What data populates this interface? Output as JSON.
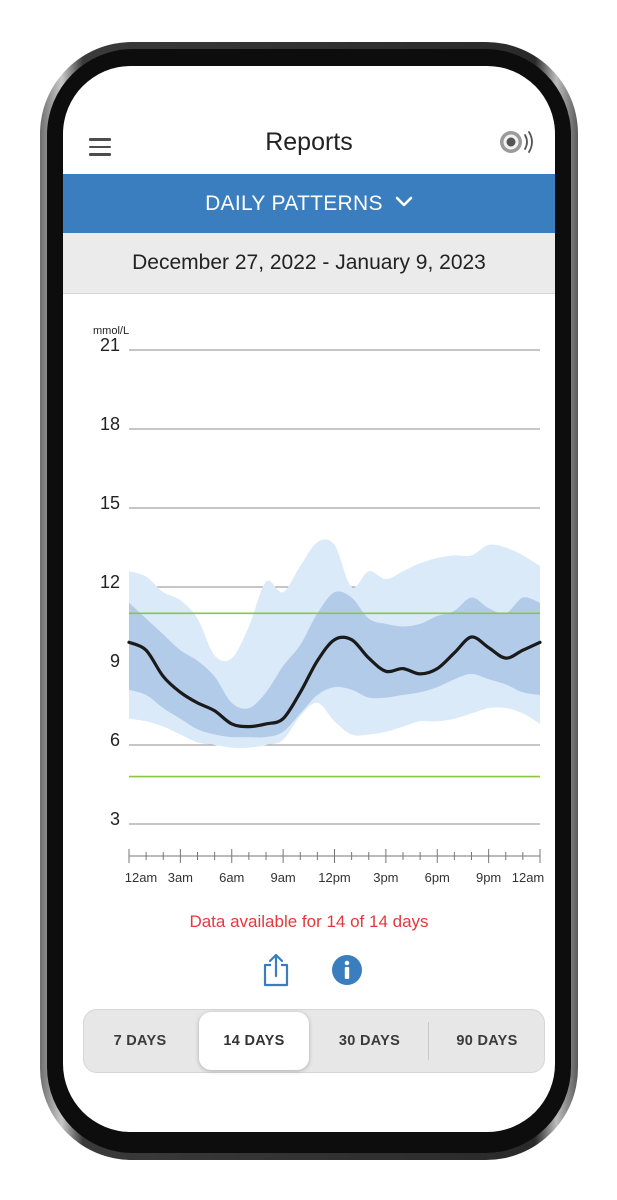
{
  "header": {
    "title": "Reports",
    "menu_icon": "hamburger-menu-icon",
    "sensor_icon": "sensor-signal-icon"
  },
  "report_selector": {
    "label": "DAILY PATTERNS",
    "icon": "chevron-down-icon"
  },
  "date_range": "December 27, 2022 - January 9, 2023",
  "chart_data": {
    "type": "area",
    "unit_label": "mmol/L",
    "ylim": [
      3,
      21
    ],
    "y_ticks": [
      "21",
      "18",
      "15",
      "12",
      "9",
      "6",
      "3"
    ],
    "x_tick_labels": [
      "12am",
      "3am",
      "6am",
      "9am",
      "12pm",
      "3pm",
      "6pm",
      "9pm",
      "12am"
    ],
    "target_range": [
      4.8,
      11
    ],
    "x_hours": [
      0,
      1,
      2,
      3,
      4,
      5,
      6,
      7,
      8,
      9,
      10,
      11,
      12,
      13,
      14,
      15,
      16,
      17,
      18,
      19,
      20,
      21,
      22,
      23,
      24
    ],
    "series": [
      {
        "values": [
          9.9,
          9.6,
          8.6,
          8.0,
          7.6,
          7.3,
          6.8,
          6.7,
          6.8,
          7.0,
          8.0,
          9.2,
          10.0,
          10.0,
          9.3,
          8.8,
          8.9,
          8.7,
          8.9,
          9.5,
          10.1,
          9.7,
          9.3,
          9.6,
          9.9
        ]
      }
    ],
    "band_inner": {
      "upper": [
        11.4,
        10.8,
        10.2,
        9.6,
        9.2,
        8.6,
        7.6,
        7.4,
        8.0,
        9.0,
        9.8,
        11.0,
        11.8,
        11.6,
        10.8,
        10.6,
        10.5,
        10.6,
        10.9,
        11.1,
        11.6,
        11.2,
        11.0,
        11.6,
        11.4
      ],
      "lower": [
        8.1,
        7.9,
        7.4,
        7.0,
        6.6,
        6.4,
        6.3,
        6.3,
        6.3,
        6.5,
        7.2,
        7.9,
        8.2,
        8.1,
        7.8,
        7.8,
        7.9,
        8.0,
        8.2,
        8.5,
        8.7,
        8.5,
        8.3,
        8.0,
        7.9
      ]
    },
    "band_outer": {
      "upper": [
        12.6,
        12.4,
        11.8,
        11.5,
        10.8,
        9.4,
        9.3,
        10.5,
        12.2,
        11.8,
        12.8,
        13.7,
        13.6,
        12.0,
        12.6,
        12.3,
        12.6,
        12.9,
        13.1,
        13.2,
        13.2,
        13.6,
        13.5,
        13.2,
        12.8
      ],
      "lower": [
        7.0,
        6.9,
        6.7,
        6.4,
        6.1,
        6.0,
        5.9,
        5.9,
        6.0,
        6.2,
        7.1,
        7.6,
        6.9,
        6.4,
        6.4,
        6.5,
        6.7,
        6.9,
        6.9,
        7.0,
        7.2,
        7.4,
        7.4,
        7.2,
        6.8
      ]
    },
    "colors": {
      "outer_band": "#dbeaf8",
      "inner_band": "#b2cbe9",
      "median": "#1a1a1a",
      "target": "#8ac640",
      "grid": "#8c8c8c"
    }
  },
  "data_note": "Data available for 14 of 14 days",
  "actions": {
    "share_icon": "share-icon",
    "info_icon": "info-icon"
  },
  "tabs": [
    {
      "label": "7 DAYS",
      "active": false
    },
    {
      "label": "14 DAYS",
      "active": true
    },
    {
      "label": "30 DAYS",
      "active": false
    },
    {
      "label": "90 DAYS",
      "active": false
    }
  ],
  "accent_color": "#3a7ebf",
  "warning_color": "#e23a3a"
}
